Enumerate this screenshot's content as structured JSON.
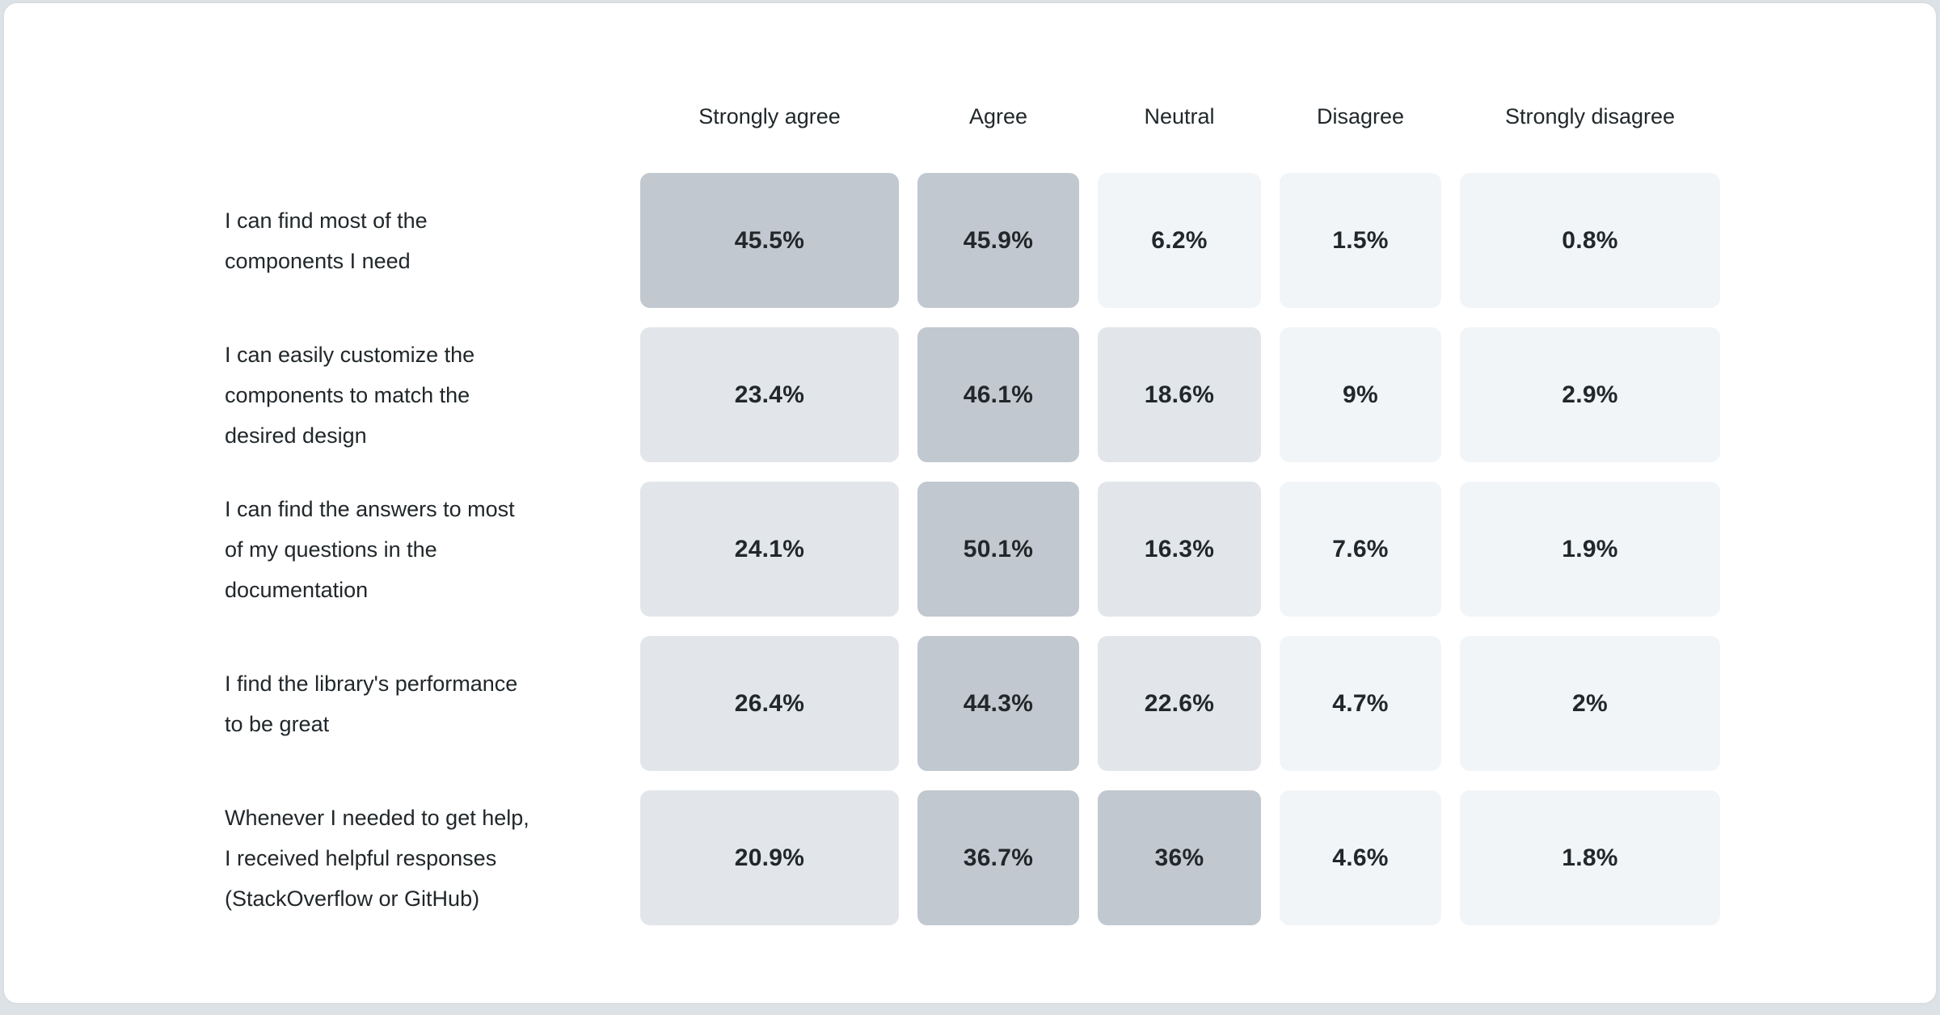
{
  "page": {
    "background": "#dde2e6",
    "card_background": "#ffffff",
    "card_border": "#d9dee2"
  },
  "chart_data": {
    "type": "heatmap",
    "title": "",
    "columns": [
      "Strongly agree",
      "Agree",
      "Neutral",
      "Disagree",
      "Strongly disagree"
    ],
    "rows": [
      {
        "label": "I can find most of the\ncomponents I need",
        "values": [
          45.5,
          45.9,
          6.2,
          1.5,
          0.8
        ],
        "display": [
          "45.5%",
          "45.9%",
          "6.2%",
          "1.5%",
          "0.8%"
        ]
      },
      {
        "label": "I can easily customize the\ncomponents to match the\ndesired design",
        "values": [
          23.4,
          46.1,
          18.6,
          9,
          2.9
        ],
        "display": [
          "23.4%",
          "46.1%",
          "18.6%",
          "9%",
          "2.9%"
        ]
      },
      {
        "label": "I can find the answers to most\nof my questions in the\ndocumentation",
        "values": [
          24.1,
          50.1,
          16.3,
          7.6,
          1.9
        ],
        "display": [
          "24.1%",
          "50.1%",
          "16.3%",
          "7.6%",
          "1.9%"
        ]
      },
      {
        "label": "I find the library's performance\nto be great",
        "values": [
          26.4,
          44.3,
          22.6,
          4.7,
          2
        ],
        "display": [
          "26.4%",
          "44.3%",
          "22.6%",
          "4.7%",
          "2%"
        ]
      },
      {
        "label": "Whenever I needed to get help,\nI received helpful responses\n(StackOverflow or GitHub)",
        "values": [
          20.9,
          36.7,
          36,
          4.6,
          1.8
        ],
        "display": [
          "20.9%",
          "36.7%",
          "36%",
          "4.6%",
          "1.8%"
        ]
      }
    ],
    "color_scale": {
      "low": "#f2f5f8",
      "mid": "#e2e6ea",
      "high": "#c2c8cf",
      "thresholds": [
        10,
        30
      ]
    },
    "text_color": "#21272a",
    "legend": "none",
    "grid_lines": false
  }
}
